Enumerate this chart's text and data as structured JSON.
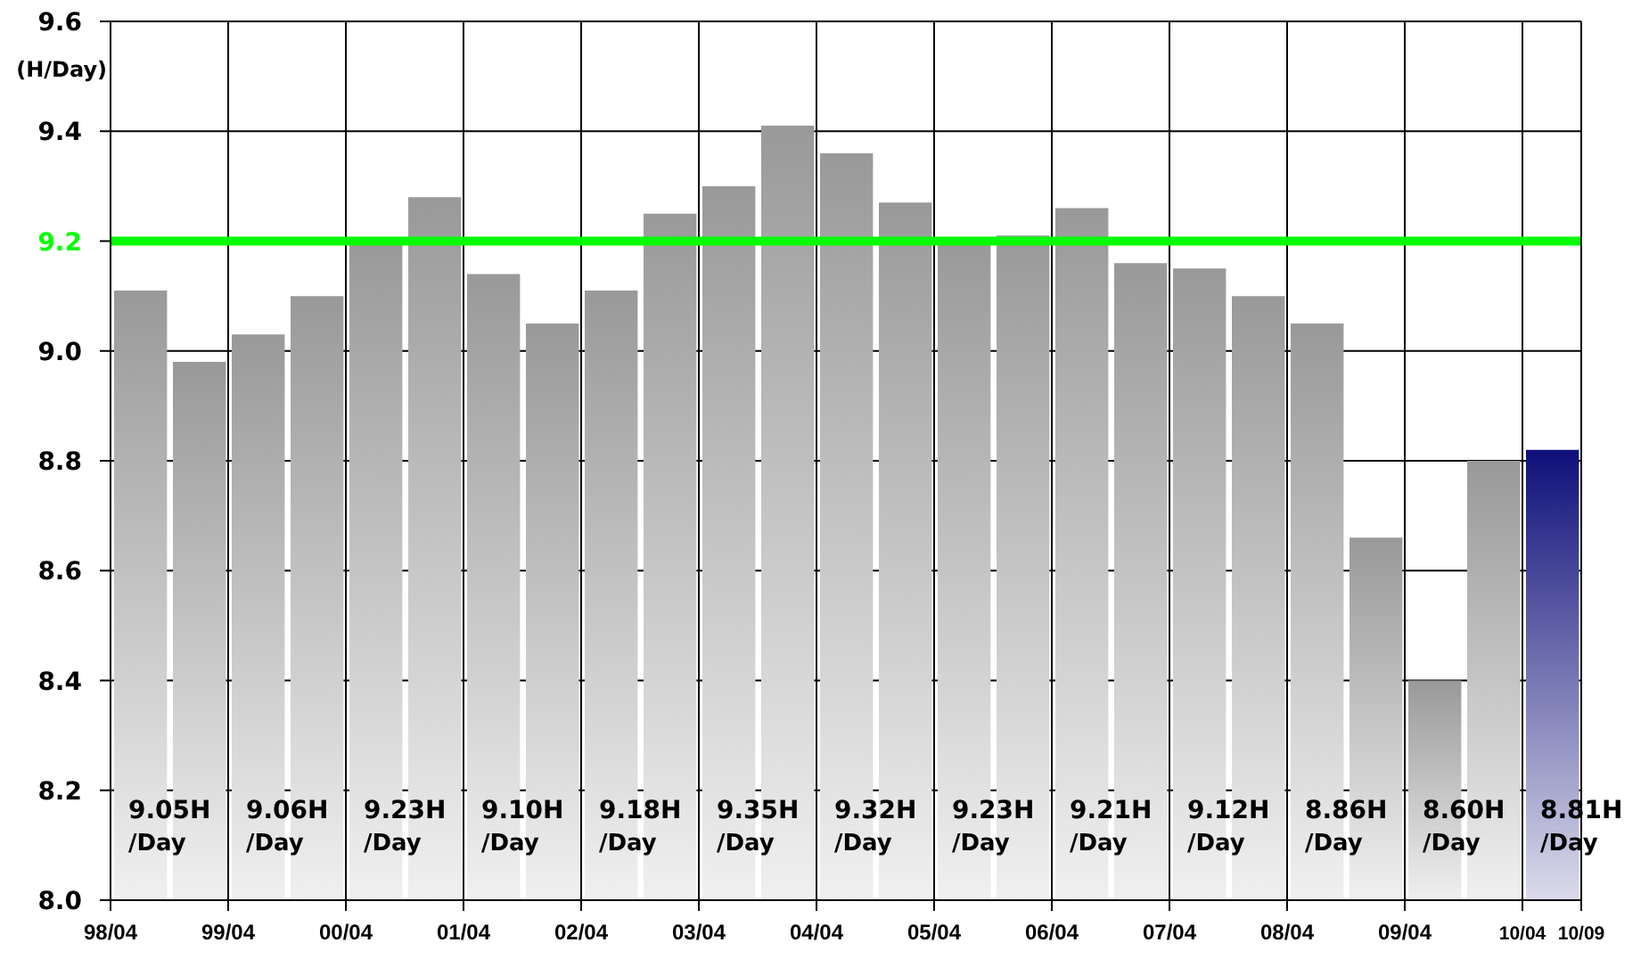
{
  "chart_data": {
    "type": "bar",
    "ylabel": "(H/Day)",
    "x": [
      "1998-07",
      "1999-01",
      "1999-07",
      "2000-01",
      "2000-07",
      "2001-01",
      "2001-07",
      "2002-01",
      "2002-07",
      "2003-01",
      "2003-07",
      "2004-01",
      "2004-07",
      "2005-01",
      "2005-07",
      "2006-01",
      "2006-07",
      "2007-01",
      "2007-07",
      "2008-01",
      "2008-07",
      "2009-01",
      "2009-07",
      "2010-01",
      "2010-07"
    ],
    "values": [
      9.11,
      8.98,
      9.03,
      9.1,
      9.2,
      9.28,
      9.14,
      9.05,
      9.11,
      9.25,
      9.3,
      9.41,
      9.36,
      9.27,
      9.2,
      9.21,
      9.26,
      9.16,
      9.15,
      9.1,
      9.05,
      8.66,
      8.4,
      8.8,
      8.82
    ],
    "colors": [
      "#999999",
      "#999999",
      "#999999",
      "#999999",
      "#999999",
      "#999999",
      "#999999",
      "#999999",
      "#999999",
      "#999999",
      "#999999",
      "#999999",
      "#999999",
      "#999999",
      "#999999",
      "#999999",
      "#999999",
      "#999999",
      "#999999",
      "#999999",
      "#999999",
      "#999999",
      "#999999",
      "#999999",
      "#0f0f7a"
    ],
    "ylim": [
      8.0,
      9.6
    ],
    "yticks": [
      {
        "value": 8,
        "label": "8.0"
      },
      8.2,
      8.4,
      8.6,
      8.8,
      {
        "value": 9,
        "label": "9.0"
      },
      9.2,
      9.4,
      9.6
    ],
    "xlim": [
      "1998-04",
      "2010-10"
    ],
    "xticks": [
      {
        "value": "1998-04",
        "label": "98/04"
      },
      {
        "value": "1999-04",
        "label": "99/04"
      },
      {
        "value": "2000-04",
        "label": "00/04"
      },
      {
        "value": "2001-04",
        "label": "01/04"
      },
      {
        "value": "2002-04",
        "label": "02/04"
      },
      {
        "value": "2003-04",
        "label": "03/04"
      },
      {
        "value": "2004-04",
        "label": "04/04"
      },
      {
        "value": "2005-04",
        "label": "05/04"
      },
      {
        "value": "2006-04",
        "label": "06/04"
      },
      {
        "value": "2007-04",
        "label": "07/04"
      },
      {
        "value": "2008-04",
        "label": "08/04"
      },
      {
        "value": "2009-04",
        "label": "09/04"
      },
      {
        "value": "2010-04",
        "label": "10/04"
      },
      {
        "value": "2010-10",
        "label": "10/09"
      }
    ],
    "grid": true,
    "ref_lines": [
      {
        "axis": "y",
        "value": 9.2,
        "color": "#00ff00"
      }
    ],
    "annotations": [
      "9.05H /Day",
      "9.06H /Day",
      "9.23H /Day",
      "9.10H /Day",
      "9.18H /Day",
      "9.35H /Day",
      "9.32H /Day",
      "9.23H /Day",
      "9.21H /Day",
      "9.12H /Day",
      "8.86H /Day",
      "8.60H /Day",
      "8.81H /Day"
    ]
  }
}
